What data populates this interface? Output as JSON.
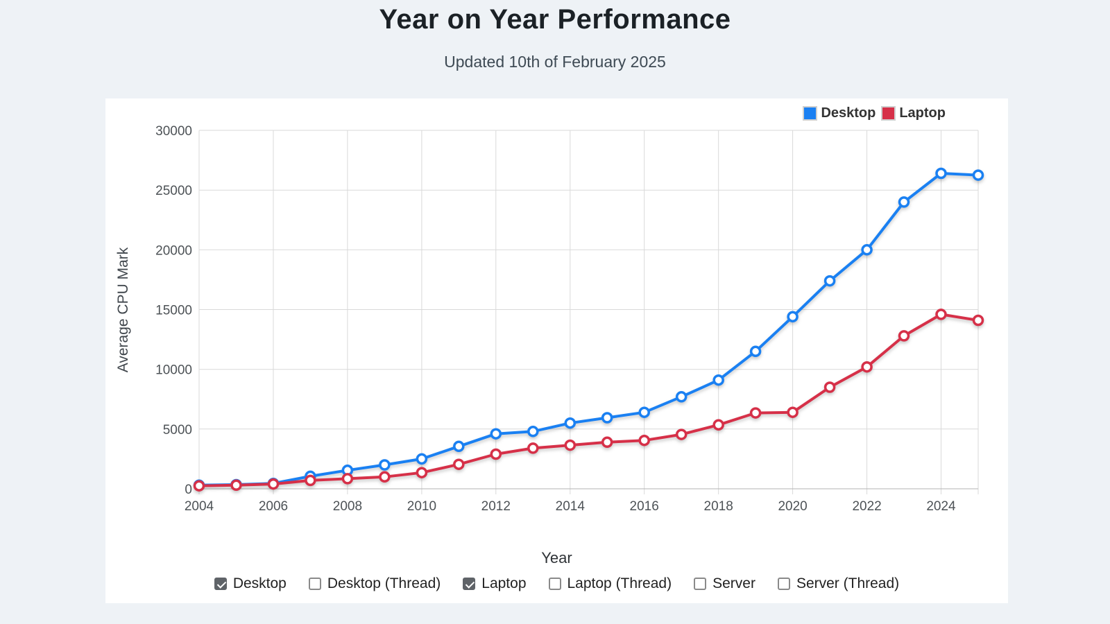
{
  "page": {
    "title": "Year on Year Performance",
    "subtitle": "Updated 10th of February 2025"
  },
  "colors": {
    "page_bg": "#eef2f6",
    "card_bg": "#ffffff",
    "desktop": "#1a80f2",
    "laptop": "#d63048",
    "grid": "#d9d9d9",
    "axis_line": "#b3b3b3",
    "tick_text": "#4d5256",
    "axis_title_text": "#40464c"
  },
  "legend": [
    {
      "label": "Desktop",
      "color": "#1a80f2"
    },
    {
      "label": "Laptop",
      "color": "#d63048"
    }
  ],
  "chart_data": {
    "type": "line",
    "title": "Year on Year Performance",
    "xlabel": "Year",
    "ylabel": "Average CPU Mark",
    "x": [
      2004,
      2005,
      2006,
      2007,
      2008,
      2009,
      2010,
      2011,
      2012,
      2013,
      2014,
      2015,
      2016,
      2017,
      2018,
      2019,
      2020,
      2021,
      2022,
      2023,
      2024,
      2025
    ],
    "series": [
      {
        "name": "Desktop",
        "color": "#1a80f2",
        "values": [
          300,
          350,
          450,
          1050,
          1550,
          2000,
          2500,
          3550,
          4600,
          4800,
          5500,
          5950,
          6400,
          7700,
          9100,
          11500,
          14400,
          17400,
          20000,
          24000,
          26400,
          26250
        ]
      },
      {
        "name": "Laptop",
        "color": "#d63048",
        "values": [
          250,
          300,
          400,
          700,
          850,
          1000,
          1350,
          2050,
          2900,
          3400,
          3650,
          3900,
          4050,
          4550,
          5350,
          6350,
          6400,
          8500,
          10200,
          12800,
          14600,
          14100
        ]
      }
    ],
    "ylim": [
      0,
      30000
    ],
    "yticks": [
      0,
      5000,
      10000,
      15000,
      20000,
      25000,
      30000
    ],
    "xticks": [
      2004,
      2006,
      2008,
      2010,
      2012,
      2014,
      2016,
      2018,
      2020,
      2022,
      2024
    ],
    "grid": true,
    "legend_position": "top-right",
    "marker": "open-circle"
  },
  "controls": {
    "checkboxes": [
      {
        "label": "Desktop",
        "checked": true
      },
      {
        "label": "Desktop (Thread)",
        "checked": false
      },
      {
        "label": "Laptop",
        "checked": true
      },
      {
        "label": "Laptop (Thread)",
        "checked": false
      },
      {
        "label": "Server",
        "checked": false
      },
      {
        "label": "Server (Thread)",
        "checked": false
      }
    ]
  }
}
